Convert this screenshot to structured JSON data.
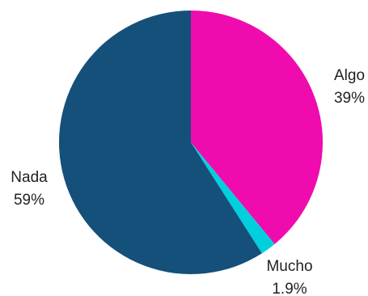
{
  "chart_data": {
    "type": "pie",
    "title": "",
    "slices": [
      {
        "label": "Algo",
        "value": 39,
        "value_label": "39%",
        "color": "#EF0BAE"
      },
      {
        "label": "Mucho",
        "value": 1.9,
        "value_label": "1.9%",
        "color": "#00CFDD"
      },
      {
        "label": "Nada",
        "value": 59,
        "value_label": "59%",
        "color": "#14507A"
      }
    ],
    "start_angle": "12 o'clock",
    "direction": "clockwise",
    "legend": "none"
  }
}
